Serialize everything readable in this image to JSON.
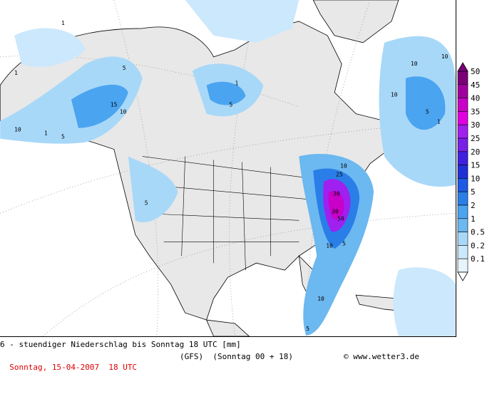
{
  "title": "6 - stuendiger Niederschlag bis Sonntag 18 UTC [mm]",
  "date_line": "Sonntag, 15-04-2007  18 UTC",
  "model": "(GFS)",
  "run": "(Sonntag 00 + 18)",
  "copyright": "www.wetter3.de",
  "legend": {
    "levels": [
      "50",
      "45",
      "40",
      "35",
      "30",
      "25",
      "20",
      "15",
      "10",
      "5",
      "2",
      "1",
      "0.5",
      "0.2",
      "0.1"
    ],
    "colors": [
      "#7a007a",
      "#a000a0",
      "#c800c8",
      "#e000e0",
      "#a020f0",
      "#7820e8",
      "#4020e0",
      "#2030d8",
      "#1e5ae6",
      "#2a7ee8",
      "#4aa4f0",
      "#6cb8f0",
      "#a8d8f8",
      "#cce8fc",
      "#e6f4fc"
    ]
  },
  "map": {
    "contour_labels": [
      "1",
      "1",
      "1",
      "5",
      "10",
      "15",
      "5",
      "10",
      "1",
      "5",
      "10",
      "25",
      "30",
      "30",
      "50",
      "10",
      "5",
      "10",
      "5",
      "10",
      "5",
      "10",
      "1",
      "5",
      "10"
    ]
  }
}
